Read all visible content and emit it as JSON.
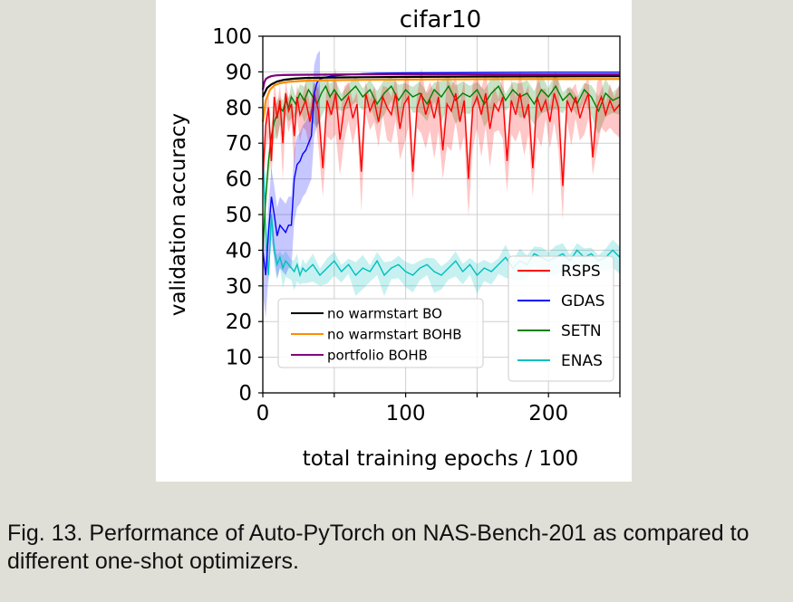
{
  "caption": "Fig. 13. Performance of Auto-PyTorch on NAS-Bench-201 as compared to different one-shot optimizers.",
  "chart_data": {
    "type": "line",
    "title": "cifar10",
    "xlabel": "total training epochs / 100",
    "ylabel": "validation accuracy",
    "xlim": [
      0,
      250
    ],
    "ylim": [
      0,
      100
    ],
    "xticks": [
      0,
      100,
      200
    ],
    "yticks": [
      0,
      10,
      20,
      30,
      40,
      50,
      60,
      70,
      80,
      90,
      100
    ],
    "grid": true,
    "legends": [
      {
        "placement": "lower-center",
        "entries": [
          {
            "name": "no warmstart BO",
            "color": "#000000"
          },
          {
            "name": "no warmstart BOHB",
            "color": "#ff8c00"
          },
          {
            "name": "portfolio BOHB",
            "color": "#800080"
          }
        ]
      },
      {
        "placement": "lower-right",
        "entries": [
          {
            "name": "RSPS",
            "color": "#ff0000"
          },
          {
            "name": "GDAS",
            "color": "#0000ff"
          },
          {
            "name": "SETN",
            "color": "#008000"
          },
          {
            "name": "ENAS",
            "color": "#00bfbf"
          }
        ]
      }
    ],
    "series": [
      {
        "name": "no warmstart BO",
        "color": "#000000",
        "x": [
          0,
          3,
          6,
          10,
          15,
          22,
          30,
          45,
          70,
          110,
          160,
          250
        ],
        "y": [
          83,
          85.5,
          86.5,
          87.3,
          87.8,
          88.1,
          88.3,
          88.4,
          88.5,
          88.6,
          88.7,
          88.8
        ]
      },
      {
        "name": "no warmstart BOHB",
        "color": "#ff8c00",
        "x": [
          0,
          2,
          5,
          8,
          12,
          18,
          25,
          35,
          50,
          75,
          120,
          180,
          250
        ],
        "y": [
          76,
          82,
          85,
          86.2,
          86.8,
          87.2,
          87.4,
          87.6,
          87.7,
          87.8,
          87.9,
          88.0,
          88.0
        ]
      },
      {
        "name": "portfolio BOHB",
        "color": "#800080",
        "x": [
          0,
          1,
          2,
          4,
          6,
          9,
          14,
          25,
          60,
          120,
          250
        ],
        "y": [
          85,
          87,
          88,
          88.5,
          88.8,
          89.0,
          89.1,
          89.2,
          89.3,
          89.3,
          89.3
        ]
      },
      {
        "name": "RSPS",
        "color": "#ff0000",
        "x": [
          0,
          2,
          4,
          6,
          8,
          10,
          12,
          14,
          16,
          18,
          20,
          22,
          24,
          26,
          28,
          30,
          33,
          36,
          39,
          42,
          45,
          48,
          51,
          54,
          57,
          60,
          63,
          66,
          69,
          72,
          75,
          78,
          81,
          84,
          87,
          90,
          93,
          96,
          99,
          102,
          105,
          108,
          111,
          114,
          117,
          120,
          123,
          126,
          129,
          132,
          135,
          138,
          141,
          144,
          147,
          150,
          153,
          156,
          159,
          162,
          165,
          168,
          171,
          174,
          177,
          180,
          183,
          186,
          189,
          192,
          195,
          198,
          201,
          204,
          207,
          210,
          213,
          216,
          219,
          222,
          225,
          228,
          231,
          234,
          237,
          240,
          243,
          246,
          250
        ],
        "y": [
          60,
          75,
          80,
          65,
          83,
          77,
          82,
          70,
          84,
          79,
          81,
          72,
          83,
          78,
          80,
          82,
          76,
          84,
          79,
          63,
          82,
          78,
          84,
          71,
          80,
          83,
          77,
          81,
          62,
          84,
          79,
          82,
          76,
          83,
          80,
          78,
          84,
          74,
          81,
          83,
          62,
          80,
          84,
          78,
          82,
          77,
          83,
          68,
          81,
          79,
          84,
          76,
          82,
          60,
          80,
          83,
          78,
          84,
          74,
          81,
          79,
          83,
          65,
          82,
          78,
          84,
          77,
          81,
          63,
          83,
          79,
          82,
          76,
          84,
          80,
          58,
          82,
          79,
          83,
          77,
          81,
          84,
          66,
          80,
          83,
          78,
          82,
          79,
          81
        ]
      },
      {
        "name": "GDAS",
        "color": "#0000ff",
        "x": [
          0,
          2,
          4,
          6,
          8,
          10,
          12,
          14,
          16,
          18,
          20,
          22,
          24,
          26,
          28,
          30,
          32,
          34,
          36,
          38,
          40,
          45,
          50,
          60,
          70,
          80,
          100,
          150,
          200,
          250
        ],
        "y": [
          40,
          33,
          45,
          55,
          50,
          44,
          47,
          46,
          45,
          47,
          47,
          60,
          64,
          65,
          67,
          68,
          70,
          72,
          84,
          87,
          88,
          88.6,
          88.9,
          89.2,
          89.5,
          89.6,
          89.7,
          89.8,
          89.9,
          89.9
        ]
      },
      {
        "name": "SETN",
        "color": "#008000",
        "x": [
          0,
          2,
          4,
          6,
          8,
          10,
          12,
          14,
          16,
          18,
          20,
          23,
          26,
          29,
          32,
          35,
          38,
          41,
          44,
          47,
          50,
          55,
          60,
          65,
          70,
          75,
          80,
          85,
          90,
          95,
          100,
          105,
          110,
          115,
          120,
          125,
          130,
          135,
          140,
          145,
          150,
          155,
          160,
          165,
          170,
          175,
          180,
          185,
          190,
          195,
          200,
          205,
          210,
          215,
          220,
          225,
          230,
          235,
          240,
          245,
          250
        ],
        "y": [
          40,
          55,
          65,
          72,
          76,
          78,
          80,
          79,
          82,
          80,
          83,
          81,
          84,
          82,
          85,
          83,
          81,
          84,
          86,
          83,
          85,
          82,
          84,
          86,
          83,
          85,
          81,
          84,
          86,
          82,
          85,
          83,
          84,
          81,
          85,
          83,
          86,
          82,
          84,
          83,
          85,
          81,
          84,
          86,
          82,
          85,
          83,
          84,
          81,
          85,
          83,
          86,
          82,
          84,
          81,
          85,
          83,
          79,
          84,
          82,
          83
        ]
      },
      {
        "name": "ENAS",
        "color": "#00bfbf",
        "x": [
          0,
          2,
          4,
          6,
          8,
          10,
          12,
          14,
          16,
          18,
          20,
          22,
          24,
          26,
          28,
          30,
          35,
          40,
          45,
          50,
          55,
          60,
          65,
          70,
          75,
          80,
          85,
          90,
          95,
          100,
          105,
          110,
          115,
          120,
          125,
          130,
          135,
          140,
          145,
          150,
          155,
          160,
          165,
          170,
          175,
          180,
          185,
          190,
          195,
          200,
          205,
          210,
          215,
          220,
          225,
          230,
          235,
          240,
          245,
          250
        ],
        "y": [
          70,
          45,
          33,
          50,
          40,
          36,
          38,
          35,
          37,
          36,
          35,
          34,
          36,
          33,
          35,
          34,
          36,
          33,
          35,
          37,
          34,
          36,
          33,
          35,
          34,
          37,
          33,
          35,
          36,
          34,
          33,
          35,
          36,
          34,
          33,
          35,
          37,
          34,
          36,
          33,
          35,
          34,
          36,
          38,
          35,
          37,
          36,
          39,
          38,
          37,
          38,
          39,
          37,
          40,
          38,
          39,
          37,
          38,
          40,
          38
        ]
      }
    ]
  }
}
